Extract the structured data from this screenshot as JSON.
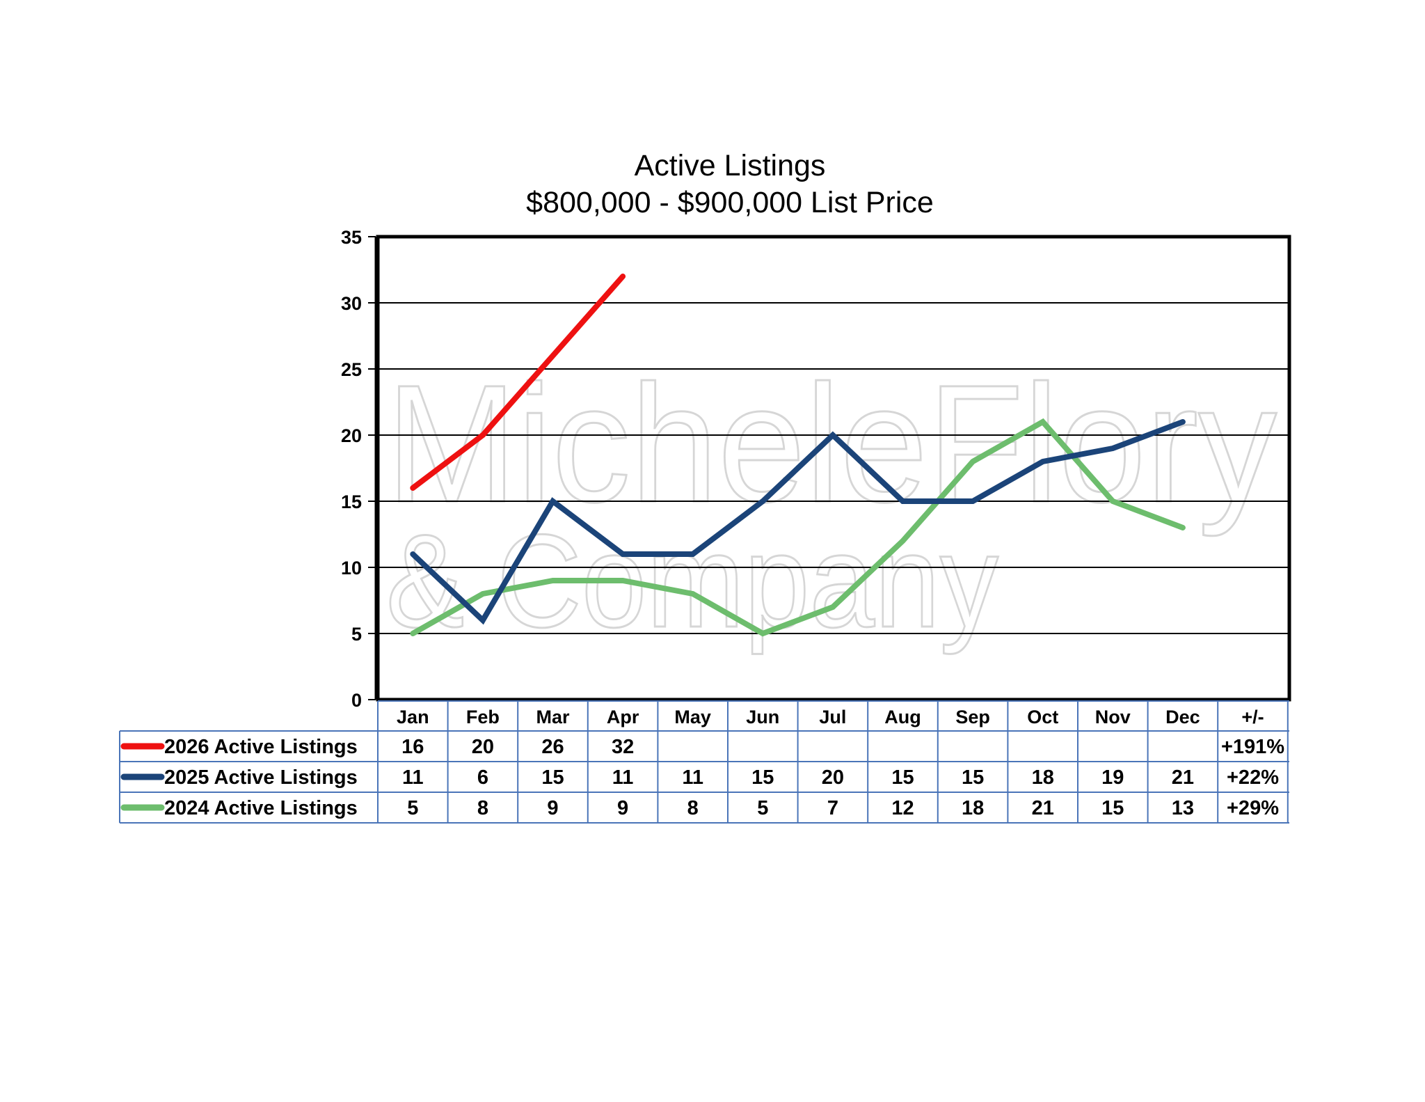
{
  "chart_data": {
    "type": "line",
    "title": "Active Listings",
    "subtitle": "$800,000 - $900,000 List Price",
    "categories": [
      "Jan",
      "Feb",
      "Mar",
      "Apr",
      "May",
      "Jun",
      "Jul",
      "Aug",
      "Sep",
      "Oct",
      "Nov",
      "Dec"
    ],
    "change_header": "+/-",
    "ylim": [
      0,
      35
    ],
    "yticks": [
      0,
      5,
      10,
      15,
      20,
      25,
      30,
      35
    ],
    "grid": true,
    "legend": "data-table-left",
    "series": [
      {
        "name": "2026 Active Listings",
        "color": "#ee1111",
        "values": [
          16,
          20,
          26,
          32,
          null,
          null,
          null,
          null,
          null,
          null,
          null,
          null
        ],
        "change": "+191%"
      },
      {
        "name": "2025 Active Listings",
        "color": "#1b4479",
        "values": [
          11,
          6,
          15,
          11,
          11,
          15,
          20,
          15,
          15,
          18,
          19,
          21
        ],
        "change": "+22%"
      },
      {
        "name": "2024 Active Listings",
        "color": "#6dbd6d",
        "values": [
          5,
          8,
          9,
          9,
          8,
          5,
          7,
          12,
          18,
          21,
          15,
          13
        ],
        "change": "+29%"
      }
    ]
  },
  "watermark": {
    "line1": "MicheleFlory",
    "line2": "& Company",
    "color": "#d6d6d6"
  }
}
